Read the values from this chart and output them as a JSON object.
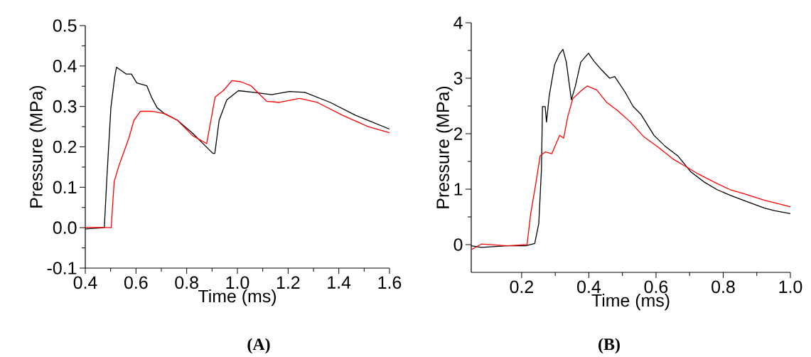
{
  "chart_data": [
    {
      "type": "line",
      "title": "(A)",
      "xlabel": "Time (ms)",
      "ylabel": "Pressure (MPa)",
      "xlim": [
        0.4,
        1.6
      ],
      "ylim": [
        -0.1,
        0.5
      ],
      "xticks": [
        0.4,
        0.6,
        0.8,
        {
          "value": 1.0,
          "label": "1.0"
        },
        1.2,
        1.4,
        1.6
      ],
      "yticks": [
        -0.1,
        {
          "value": 0,
          "label": "0.0"
        },
        0.1,
        0.2,
        0.3,
        0.4,
        0.5
      ],
      "marker": "none",
      "series": [
        {
          "color": "#000000",
          "x": [
            0.4,
            0.475,
            0.486,
            0.501,
            0.516,
            0.523,
            0.562,
            0.582,
            0.603,
            0.643,
            0.661,
            0.683,
            0.713,
            0.763,
            0.823,
            0.863,
            0.903,
            0.911,
            0.928,
            0.958,
            1.004,
            1.065,
            1.135,
            1.205,
            1.266,
            1.366,
            1.466,
            1.6
          ],
          "values": [
            -0.003,
            0,
            0.133,
            0.297,
            0.373,
            0.397,
            0.38,
            0.38,
            0.358,
            0.351,
            0.323,
            0.297,
            0.282,
            0.266,
            0.234,
            0.209,
            0.184,
            0.184,
            0.266,
            0.316,
            0.339,
            0.335,
            0.329,
            0.337,
            0.335,
            0.31,
            0.278,
            0.244
          ]
        },
        {
          "color": "#ff0000",
          "x": [
            0.4,
            0.502,
            0.514,
            0.532,
            0.572,
            0.592,
            0.618,
            0.663,
            0.713,
            0.763,
            0.823,
            0.879,
            0.912,
            0.944,
            0.979,
            1.014,
            1.054,
            1.115,
            1.165,
            1.245,
            1.315,
            1.415,
            1.516,
            1.6
          ],
          "values": [
            0.001,
            0,
            0.114,
            0.152,
            0.222,
            0.266,
            0.288,
            0.288,
            0.282,
            0.266,
            0.228,
            0.208,
            0.323,
            0.339,
            0.364,
            0.361,
            0.351,
            0.313,
            0.31,
            0.32,
            0.31,
            0.278,
            0.25,
            0.235
          ]
        }
      ]
    },
    {
      "type": "line",
      "title": "(B)",
      "xlabel": "Time (ms)",
      "ylabel": "Pressure (MPa)",
      "xlim": [
        0.05,
        1.0
      ],
      "ylim": [
        -0.5,
        4
      ],
      "xticks": [
        0.2,
        0.4,
        0.6,
        0.8,
        {
          "value": 1.0,
          "label": "1.0"
        }
      ],
      "yticks": [
        0,
        1,
        2,
        3,
        4
      ],
      "marker": "none",
      "series": [
        {
          "color": "#000000",
          "x": [
            0.05,
            0.08,
            0.157,
            0.212,
            0.239,
            0.251,
            0.259,
            0.262,
            0.27,
            0.274,
            0.282,
            0.298,
            0.312,
            0.323,
            0.333,
            0.348,
            0.36,
            0.376,
            0.399,
            0.415,
            0.438,
            0.462,
            0.477,
            0.508,
            0.532,
            0.555,
            0.594,
            0.626,
            0.665,
            0.704,
            0.743,
            0.782,
            0.821,
            0.86,
            0.923,
            0.954,
            1.0
          ],
          "values": [
            -0.02,
            -0.05,
            -0.02,
            -0.02,
            0.02,
            0.38,
            1.36,
            2.49,
            2.49,
            2.21,
            2.68,
            3.24,
            3.43,
            3.52,
            3.29,
            2.61,
            2.86,
            3.29,
            3.45,
            3.31,
            3.15,
            3.0,
            3.03,
            2.75,
            2.49,
            2.35,
            1.97,
            1.78,
            1.6,
            1.31,
            1.13,
            0.99,
            0.89,
            0.8,
            0.66,
            0.61,
            0.56
          ]
        },
        {
          "color": "#ff0000",
          "x": [
            0.05,
            0.08,
            0.157,
            0.216,
            0.227,
            0.243,
            0.255,
            0.27,
            0.29,
            0.313,
            0.325,
            0.337,
            0.352,
            0.376,
            0.395,
            0.423,
            0.454,
            0.485,
            0.524,
            0.563,
            0.61,
            0.649,
            0.688,
            0.727,
            0.782,
            0.821,
            0.86,
            0.923,
            0.97,
            1.0
          ],
          "values": [
            -0.09,
            0.01,
            -0.02,
            0,
            0.56,
            1.13,
            1.6,
            1.67,
            1.64,
            1.97,
            1.92,
            2.3,
            2.63,
            2.77,
            2.86,
            2.79,
            2.56,
            2.42,
            2.21,
            1.95,
            1.74,
            1.55,
            1.41,
            1.27,
            1.1,
            0.99,
            0.92,
            0.8,
            0.73,
            0.68
          ]
        }
      ]
    }
  ]
}
